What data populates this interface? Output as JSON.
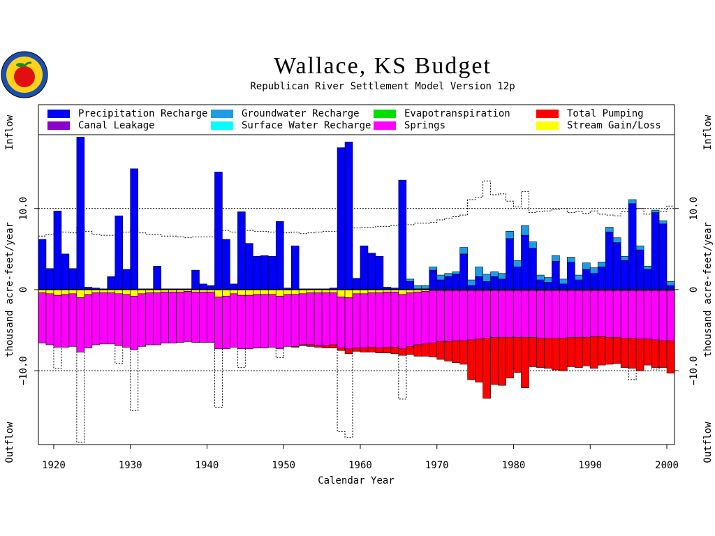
{
  "chart_data": {
    "type": "bar",
    "title": "Wallace, KS Budget",
    "subtitle": "Republican River Settlement Model Version 12p",
    "xlabel": "Calendar Year",
    "ylabel": "thousand  acre-feet/year",
    "inflow_label": "Inflow",
    "outflow_label": "Outflow",
    "stacked": true,
    "grid": true,
    "xlim": [
      1918,
      2001
    ],
    "xticks": [
      1920,
      1930,
      1940,
      1950,
      1960,
      1970,
      1980,
      1990,
      2000
    ],
    "ylim": [
      -19.1,
      19.1
    ],
    "yticks": [
      {
        "value": -10,
        "label": "−10.0"
      },
      0,
      {
        "value": 10,
        "label": "10.0"
      }
    ],
    "x": [
      1918,
      1919,
      1920,
      1921,
      1922,
      1923,
      1924,
      1925,
      1926,
      1927,
      1928,
      1929,
      1930,
      1931,
      1932,
      1933,
      1934,
      1935,
      1936,
      1937,
      1938,
      1939,
      1940,
      1941,
      1942,
      1943,
      1944,
      1945,
      1946,
      1947,
      1948,
      1949,
      1950,
      1951,
      1952,
      1953,
      1954,
      1955,
      1956,
      1957,
      1958,
      1959,
      1960,
      1961,
      1962,
      1963,
      1964,
      1965,
      1966,
      1967,
      1968,
      1969,
      1970,
      1971,
      1972,
      1973,
      1974,
      1975,
      1976,
      1977,
      1978,
      1979,
      1980,
      1981,
      1982,
      1983,
      1984,
      1985,
      1986,
      1987,
      1988,
      1989,
      1990,
      1991,
      1992,
      1993,
      1994,
      1995,
      1996,
      1997,
      1998,
      1999,
      2000
    ],
    "series": [
      {
        "name": "Precipitation Recharge",
        "color": "#0000ff",
        "values": [
          6.2,
          2.6,
          9.7,
          4.4,
          2.6,
          18.8,
          0.3,
          0.2,
          0.1,
          1.6,
          9.1,
          2.5,
          14.9,
          0.1,
          0.1,
          2.9,
          0.1,
          0.1,
          0.1,
          0.1,
          2.4,
          0.7,
          0.5,
          14.5,
          6.2,
          0.7,
          9.6,
          5.7,
          4.1,
          4.2,
          4.1,
          8.4,
          0.2,
          5.4,
          0.1,
          0.1,
          0.1,
          0.1,
          0.2,
          17.5,
          18.2,
          1.4,
          5.4,
          4.5,
          4.1,
          0.3,
          0.2,
          13.5,
          1.0,
          0.1,
          0.1,
          2.4,
          1.2,
          1.6,
          1.9,
          4.4,
          0.5,
          1.6,
          1.0,
          1.6,
          1.3,
          6.3,
          2.8,
          6.7,
          5.1,
          1.2,
          0.9,
          3.5,
          0.7,
          3.4,
          1.2,
          2.5,
          2.0,
          2.8,
          7.1,
          5.8,
          3.6,
          10.6,
          4.9,
          2.5,
          9.5,
          8.1,
          0.5
        ]
      },
      {
        "name": "Groundwater Recharge",
        "color": "#1e9be6",
        "values": [
          0,
          0,
          0,
          0,
          0,
          0,
          0,
          0,
          0,
          0,
          0,
          0,
          0,
          0,
          0,
          0,
          0,
          0,
          0,
          0,
          0,
          0,
          0,
          0,
          0,
          0,
          0,
          0,
          0,
          0,
          0,
          0,
          0,
          0,
          0,
          0,
          0,
          0,
          0,
          0,
          0,
          0,
          0,
          0,
          0,
          0,
          0,
          0,
          0.3,
          0.4,
          0.4,
          0.4,
          0.6,
          0.4,
          0.3,
          0.8,
          0.7,
          1.2,
          0.9,
          0.6,
          0.7,
          0.9,
          0.8,
          1.2,
          0.8,
          0.6,
          0.6,
          0.7,
          0.6,
          0.6,
          0.6,
          0.8,
          0.7,
          0.6,
          0.6,
          0.6,
          0.5,
          0.5,
          0.5,
          0.4,
          0.3,
          0.4,
          0.5
        ]
      },
      {
        "name": "Canal Leakage",
        "color": "#8a00c8"
      },
      {
        "name": "Surface Water Recharge",
        "color": "#00ffff"
      },
      {
        "name": "Evapotranspiration",
        "color": "#00e000"
      },
      {
        "name": "Stream Gain/Loss",
        "color": "#ffff00",
        "values": [
          -0.4,
          -0.5,
          -0.7,
          -0.6,
          -0.5,
          -1.0,
          -0.6,
          -0.4,
          -0.4,
          -0.4,
          -0.5,
          -0.6,
          -0.8,
          -0.5,
          -0.4,
          -0.4,
          -0.3,
          -0.3,
          -0.3,
          -0.2,
          -0.3,
          -0.3,
          -0.3,
          -0.9,
          -0.8,
          -0.5,
          -0.7,
          -0.7,
          -0.6,
          -0.6,
          -0.6,
          -0.8,
          -0.6,
          -0.6,
          -0.5,
          -0.4,
          -0.4,
          -0.4,
          -0.4,
          -0.9,
          -1.0,
          -0.5,
          -0.5,
          -0.4,
          -0.4,
          -0.3,
          -0.3,
          -0.6,
          -0.4,
          -0.3,
          -0.2,
          -0.1,
          -0.1,
          -0.1,
          -0.1,
          -0.1,
          -0.1,
          -0.1,
          -0.1,
          -0.1,
          -0.1,
          -0.1,
          -0.1,
          -0.1,
          -0.1,
          -0.1,
          -0.1,
          -0.1,
          -0.1,
          -0.1,
          -0.1,
          -0.1,
          -0.1,
          -0.1,
          -0.1,
          -0.1,
          -0.1,
          -0.1,
          -0.1,
          -0.1,
          -0.1,
          -0.1,
          -0.1
        ]
      },
      {
        "name": "Springs",
        "color": "#ff00ff",
        "values": [
          -6.2,
          -6.3,
          -6.4,
          -6.5,
          -6.5,
          -6.7,
          -6.6,
          -6.4,
          -6.3,
          -6.3,
          -6.4,
          -6.5,
          -6.6,
          -6.5,
          -6.4,
          -6.4,
          -6.3,
          -6.3,
          -6.2,
          -6.2,
          -6.2,
          -6.2,
          -6.2,
          -6.4,
          -6.5,
          -6.6,
          -6.6,
          -6.6,
          -6.6,
          -6.6,
          -6.5,
          -6.5,
          -6.4,
          -6.4,
          -6.3,
          -6.4,
          -6.5,
          -6.5,
          -6.4,
          -6.3,
          -6.3,
          -6.7,
          -6.7,
          -6.7,
          -6.8,
          -6.8,
          -6.8,
          -6.7,
          -6.6,
          -6.5,
          -6.5,
          -6.5,
          -6.3,
          -6.3,
          -6.2,
          -6.2,
          -6.1,
          -6.0,
          -5.9,
          -5.8,
          -5.8,
          -5.8,
          -5.8,
          -5.8,
          -5.8,
          -5.9,
          -5.9,
          -5.9,
          -5.9,
          -5.8,
          -5.8,
          -5.8,
          -5.7,
          -5.7,
          -5.8,
          -5.8,
          -5.9,
          -5.9,
          -6.0,
          -6.0,
          -6.1,
          -6.2,
          -6.2
        ]
      },
      {
        "name": "Total Pumping",
        "color": "#ff0000",
        "values": [
          0,
          0,
          0,
          0,
          0,
          0,
          0,
          0,
          0,
          0,
          0,
          0,
          0,
          0,
          0,
          0,
          0,
          0,
          0,
          0,
          0,
          0,
          0,
          0,
          0,
          0,
          0,
          0,
          0,
          0,
          0,
          0,
          0,
          -0.1,
          -0.1,
          -0.2,
          -0.2,
          -0.3,
          -0.4,
          -0.3,
          -0.6,
          -0.4,
          -0.5,
          -0.6,
          -0.6,
          -0.7,
          -0.8,
          -0.8,
          -1.0,
          -1.4,
          -1.5,
          -1.7,
          -2.2,
          -2.4,
          -2.7,
          -2.9,
          -4.9,
          -5.3,
          -7.4,
          -5.8,
          -5.9,
          -5.0,
          -4.3,
          -6.2,
          -3.6,
          -3.6,
          -3.7,
          -3.9,
          -4.0,
          -3.6,
          -3.7,
          -3.5,
          -3.9,
          -3.5,
          -3.3,
          -3.2,
          -3.6,
          -3.7,
          -3.9,
          -3.2,
          -3.4,
          -3.3,
          -4.0
        ]
      }
    ]
  }
}
